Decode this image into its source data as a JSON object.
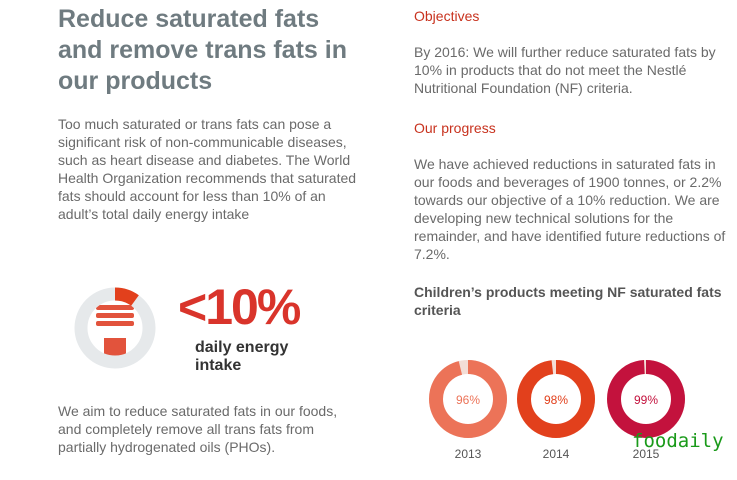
{
  "left": {
    "title": "Reduce saturated fats and remove trans fats in our products",
    "intro": "Too much saturated or trans fats can pose a significant risk of non-communicable diseases, such as heart disease and diabetes. The World Health Organization recommends that saturated fats should account for less than 10% of an adult’s total daily energy intake",
    "graphic": {
      "value": 10,
      "label": "<10%",
      "caption": "daily energy intake"
    },
    "outro": "We aim to reduce saturated fats in our foods, and completely remove all trans fats from partially hydrogenated oils (PHOs)."
  },
  "right": {
    "objectives": {
      "heading": "Objectives",
      "text": "By 2016: We will further reduce saturated fats by 10% in products that do not meet the Nestlé Nutritional Foundation (NF) criteria."
    },
    "progress": {
      "heading": "Our progress",
      "text": "We have achieved reductions in saturated fats in our foods and beverages of 1900 tonnes, or 2.2% towards our objective of a 10% reduction. We are developing new technical solutions for the remainder, and have identified future reductions of 7.2%."
    }
  },
  "chart_data": {
    "type": "donut",
    "title": "Children’s products meeting NF saturated fats criteria",
    "categories": [
      "2013",
      "2014",
      "2015"
    ],
    "values": [
      96,
      98,
      99
    ],
    "value_labels": [
      "96%",
      "98%",
      "99%"
    ],
    "colors": [
      "#ec7358",
      "#e2401c",
      "#c3123d"
    ],
    "ylim": [
      0,
      100
    ]
  },
  "watermark": "foodaily"
}
